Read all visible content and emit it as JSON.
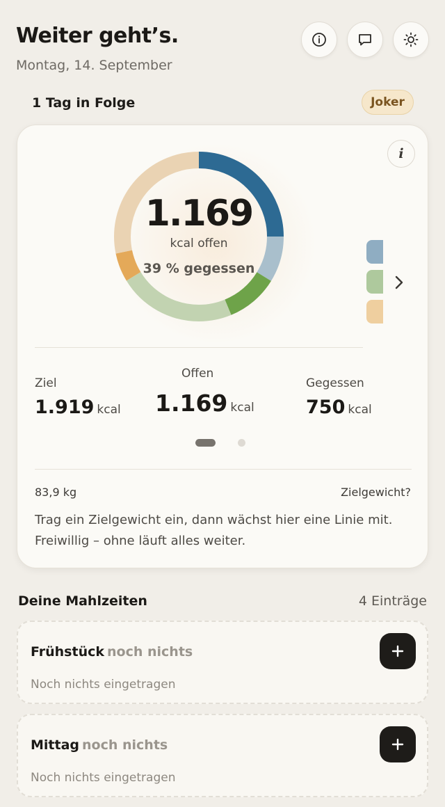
{
  "header": {
    "title": "Weiter geht’s.",
    "date": "Montag, 14. September",
    "icons": [
      "info-icon",
      "chat-icon",
      "sun-icon"
    ]
  },
  "streak": {
    "label": "1 Tag in Folge",
    "joker_label": "Joker"
  },
  "summary": {
    "info_label": "i",
    "remaining_value": "1.169",
    "remaining_unit": "kcal offen",
    "eaten_percent": "39 % gegessen",
    "colors": {
      "protein": "#2d6a93",
      "protein_light": "#a9bfcc",
      "carbs": "#6ea349",
      "carbs_light": "#c2d3b1",
      "fat": "#e4a959",
      "fat_light": "#ead3b3"
    },
    "stats": {
      "goal_label": "Ziel",
      "goal_value": "1.919",
      "open_label": "Offen",
      "open_value": "1.169",
      "eaten_label": "Gegessen",
      "eaten_value": "750",
      "unit": "kcal"
    },
    "pager": {
      "pages": 2,
      "active": 1
    }
  },
  "weight": {
    "current": "83,9 kg",
    "goal_link": "Zielgewicht?",
    "hint": "Trag ein Zielgewicht ein, dann wächst hier eine Linie mit. Freiwillig – ohne läuft alles weiter."
  },
  "meals": {
    "title": "Deine Mahlzeiten",
    "count": "4 Einträge",
    "items": [
      {
        "name": "Frühstück",
        "status": "noch nichts",
        "empty": "Noch nichts eingetragen"
      },
      {
        "name": "Mittag",
        "status": "noch nichts",
        "empty": "Noch nichts eingetragen"
      }
    ]
  }
}
